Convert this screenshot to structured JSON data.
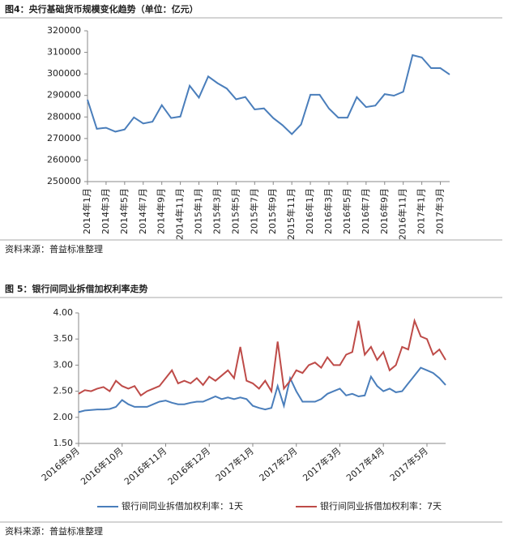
{
  "chart_data": [
    {
      "type": "line",
      "title": "图4：央行基础货币规模变化趋势（单位：亿元）",
      "source": "资料来源：普益标准整理",
      "color": "#4a7ebb",
      "categories": [
        "2014年1月",
        null,
        "2014年3月",
        null,
        "2014年5月",
        null,
        "2014年7月",
        null,
        "2014年9月",
        null,
        "2014年11月",
        null,
        "2015年1月",
        null,
        "2015年3月",
        null,
        "2015年5月",
        null,
        "2015年7月",
        null,
        "2015年9月",
        null,
        "2015年11月",
        null,
        "2016年1月",
        null,
        "2016年3月",
        null,
        "2016年5月",
        null,
        "2016年7月",
        null,
        "2016年9月",
        null,
        "2016年11月",
        null,
        "2017年1月",
        null,
        "2017年3月",
        null
      ],
      "values": [
        288000,
        274500,
        275000,
        273200,
        274200,
        279800,
        277000,
        277800,
        285500,
        279500,
        280200,
        294500,
        289000,
        298800,
        295700,
        293200,
        288200,
        289300,
        283500,
        284000,
        279500,
        276200,
        272000,
        276500,
        290300,
        290300,
        283900,
        279700,
        279700,
        289200,
        284600,
        285300,
        290600,
        289900,
        291700,
        308700,
        307600,
        302700,
        302700,
        299700
      ],
      "ylim": [
        250000,
        320000
      ],
      "yticks": [
        250000,
        260000,
        270000,
        280000,
        290000,
        300000,
        310000,
        320000
      ]
    },
    {
      "type": "line",
      "title": "图 5：银行间同业拆借加权利率走势",
      "source": "资料来源：普益标准整理",
      "legend": "bottom",
      "categories": [
        "2016年9月",
        null,
        null,
        null,
        null,
        null,
        null,
        "2016年10月",
        null,
        null,
        null,
        null,
        null,
        null,
        "2016年11月",
        null,
        null,
        null,
        null,
        null,
        null,
        "2016年12月",
        null,
        null,
        null,
        null,
        null,
        null,
        "2017年1月",
        null,
        null,
        null,
        null,
        null,
        null,
        "2017年2月",
        null,
        null,
        null,
        null,
        null,
        null,
        "2017年3月",
        null,
        null,
        null,
        null,
        null,
        null,
        "2017年4月",
        null,
        null,
        null,
        null,
        null,
        null,
        "2017年5月",
        null,
        null,
        null
      ],
      "series": [
        {
          "name": "银行间同业拆借加权利率：1天",
          "color": "#4a7ebb",
          "values": [
            2.1,
            2.13,
            2.14,
            2.15,
            2.15,
            2.16,
            2.2,
            2.33,
            2.25,
            2.2,
            2.2,
            2.2,
            2.25,
            2.3,
            2.32,
            2.28,
            2.25,
            2.25,
            2.28,
            2.3,
            2.3,
            2.35,
            2.4,
            2.35,
            2.38,
            2.35,
            2.38,
            2.35,
            2.22,
            2.18,
            2.15,
            2.18,
            2.6,
            2.22,
            2.75,
            2.5,
            2.3,
            2.3,
            2.3,
            2.35,
            2.45,
            2.5,
            2.55,
            2.42,
            2.45,
            2.4,
            2.42,
            2.78,
            2.6,
            2.5,
            2.55,
            2.48,
            2.5,
            2.65,
            2.8,
            2.95,
            2.9,
            2.85,
            2.75,
            2.62
          ]
        },
        {
          "name": "银行间同业拆借加权利率：7天",
          "color": "#be4b48",
          "values": [
            2.45,
            2.52,
            2.5,
            2.55,
            2.58,
            2.5,
            2.7,
            2.6,
            2.55,
            2.6,
            2.42,
            2.5,
            2.55,
            2.6,
            2.75,
            2.9,
            2.65,
            2.7,
            2.65,
            2.75,
            2.62,
            2.78,
            2.7,
            2.8,
            2.9,
            2.75,
            3.35,
            2.7,
            2.65,
            2.55,
            2.7,
            2.5,
            3.45,
            2.55,
            2.7,
            2.9,
            2.85,
            3.0,
            3.05,
            2.95,
            3.15,
            3.0,
            3.0,
            3.2,
            3.25,
            3.85,
            3.2,
            3.35,
            3.1,
            3.25,
            2.9,
            3.0,
            3.35,
            3.3,
            3.85,
            3.55,
            3.5,
            3.2,
            3.3,
            3.1
          ]
        }
      ],
      "ylim": [
        1.5,
        4.0
      ],
      "yticks": [
        {
          "value": 1.5,
          "label": "1.50"
        },
        {
          "value": 2.0,
          "label": "2.00"
        },
        {
          "value": 2.5,
          "label": "2.50"
        },
        {
          "value": 3.0,
          "label": "3.00"
        },
        {
          "value": 3.5,
          "label": "3.50"
        },
        {
          "value": 4.0,
          "label": "4.00"
        }
      ]
    }
  ]
}
